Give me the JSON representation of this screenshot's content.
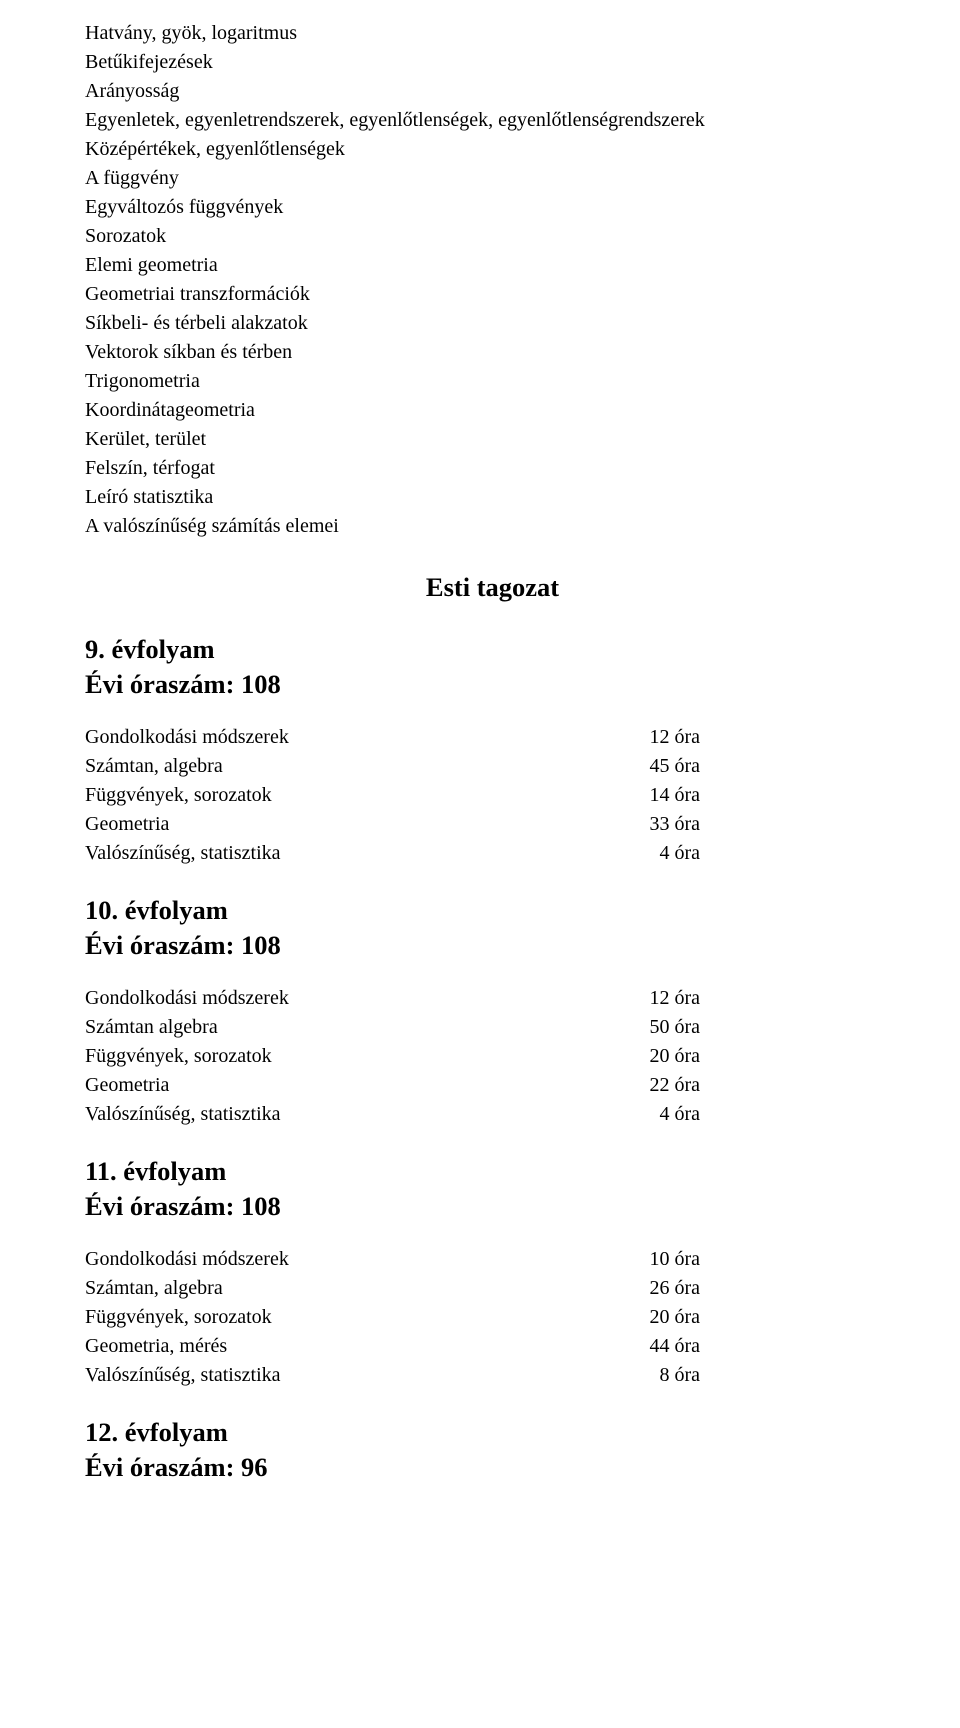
{
  "topics": [
    "Hatvány, gyök, logaritmus",
    "Betűkifejezések",
    "Arányosság",
    "Egyenletek, egyenletrendszerek, egyenlőtlenségek, egyenlőtlenségrendszerek",
    "Középértékek, egyenlőtlenségek",
    "A függvény",
    "Egyváltozós függvények",
    "Sorozatok",
    "Elemi geometria",
    "Geometriai transzformációk",
    "Síkbeli- és térbeli alakzatok",
    "Vektorok síkban és térben",
    "Trigonometria",
    "Koordinátageometria",
    "Kerület, terület",
    "Felszín, térfogat",
    "Leíró statisztika",
    "A valószínűség számítás elemei"
  ],
  "center_heading": "Esti tagozat",
  "grades": [
    {
      "title": "9. évfolyam",
      "hours": "Évi óraszám: 108",
      "rows": [
        {
          "label": "Gondolkodási módszerek",
          "value": "12 óra"
        },
        {
          "label": "Számtan, algebra",
          "value": "45 óra"
        },
        {
          "label": "Függvények, sorozatok",
          "value": "14 óra"
        },
        {
          "label": "Geometria",
          "value": "33 óra"
        },
        {
          "label": "Valószínűség, statisztika",
          "value": "4 óra"
        }
      ]
    },
    {
      "title": "10. évfolyam",
      "hours": "Évi óraszám: 108",
      "rows": [
        {
          "label": "Gondolkodási módszerek",
          "value": "12 óra"
        },
        {
          "label": "Számtan algebra",
          "value": "50 óra"
        },
        {
          "label": "Függvények, sorozatok",
          "value": "20 óra"
        },
        {
          "label": "Geometria",
          "value": "22 óra"
        },
        {
          "label": "Valószínűség, statisztika",
          "value": "4 óra"
        }
      ]
    },
    {
      "title": "11. évfolyam",
      "hours": "Évi óraszám: 108",
      "rows": [
        {
          "label": "Gondolkodási módszerek",
          "value": "10 óra"
        },
        {
          "label": "Számtan, algebra",
          "value": "26 óra"
        },
        {
          "label": "Függvények, sorozatok",
          "value": "20 óra"
        },
        {
          "label": "Geometria, mérés",
          "value": "44 óra"
        },
        {
          "label": "Valószínűség, statisztika",
          "value": "8 óra"
        }
      ]
    }
  ],
  "final": {
    "title": "12. évfolyam",
    "hours": "Évi óraszám: 96"
  }
}
